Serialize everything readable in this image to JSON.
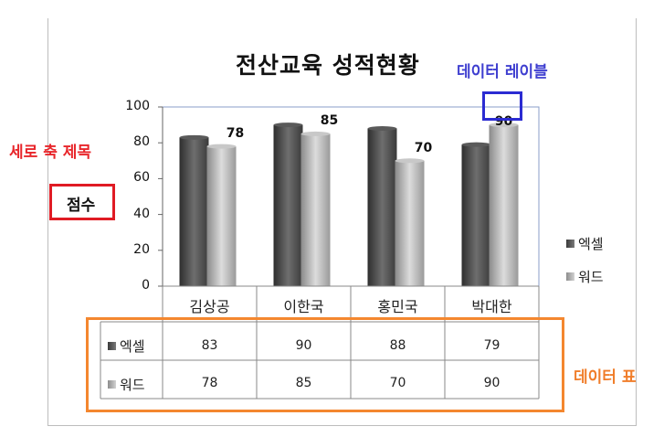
{
  "chart_data": {
    "type": "bar",
    "title": "전산교육 성적현황",
    "ylabel": "점수",
    "categories": [
      "김상공",
      "이한국",
      "홍민국",
      "박대한"
    ],
    "series": [
      {
        "name": "엑셀",
        "values": [
          83,
          90,
          88,
          79
        ],
        "color": "#4a4a4a"
      },
      {
        "name": "워드",
        "values": [
          78,
          85,
          70,
          90
        ],
        "color": "#b0b0b0"
      }
    ],
    "ylim": [
      0,
      100
    ],
    "yticks": [
      "0",
      "20",
      "40",
      "60",
      "80",
      "100"
    ],
    "data_labels": {
      "series": "워드",
      "values": [
        "78",
        "85",
        "70",
        "90"
      ]
    },
    "legend_position": "right",
    "data_table": true,
    "table": {
      "rows": [
        {
          "name": "엑셀",
          "values": [
            "83",
            "90",
            "88",
            "79"
          ]
        },
        {
          "name": "워드",
          "values": [
            "78",
            "85",
            "70",
            "90"
          ]
        }
      ]
    }
  },
  "annotations": {
    "axis_title_callout": "세로 축 제목",
    "data_label_callout": "데이터 레이블",
    "data_table_callout": "데이터 표",
    "axis_title_color": "#e8262b",
    "data_label_color": "#3f3fd0",
    "data_table_color": "#f07d2a"
  }
}
